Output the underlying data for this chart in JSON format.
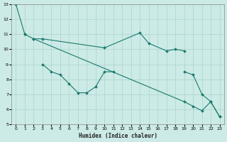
{
  "xlabel": "Humidex (Indice chaleur)",
  "background_color": "#cceae6",
  "grid_color": "#aad4cc",
  "line_color": "#1a7a6e",
  "xlim": [
    -0.5,
    23.5
  ],
  "ylim": [
    5,
    13
  ],
  "yticks": [
    5,
    6,
    7,
    8,
    9,
    10,
    11,
    12,
    13
  ],
  "xticks": [
    0,
    1,
    2,
    3,
    4,
    5,
    6,
    7,
    8,
    9,
    10,
    11,
    12,
    13,
    14,
    15,
    16,
    17,
    18,
    19,
    20,
    21,
    22,
    23
  ],
  "lines": [
    {
      "x": [
        0,
        1
      ],
      "y": [
        13,
        11
      ]
    },
    {
      "x": [
        1,
        2,
        3,
        10,
        14,
        15,
        17,
        18,
        19
      ],
      "y": [
        11,
        10.7,
        10.7,
        10.1,
        11.1,
        10.4,
        9.9,
        10.0,
        9.9
      ]
    },
    {
      "x": [
        2,
        19,
        20,
        21,
        22,
        23
      ],
      "y": [
        10.7,
        6.5,
        6.2,
        5.9,
        6.5,
        5.5
      ]
    },
    {
      "x": [
        3,
        4,
        5,
        6,
        7,
        8,
        9,
        10,
        11
      ],
      "y": [
        9.0,
        8.5,
        8.3,
        7.7,
        7.1,
        7.1,
        7.5,
        8.5,
        8.5
      ]
    },
    {
      "x": [
        19,
        20,
        21,
        22,
        23
      ],
      "y": [
        8.5,
        8.3,
        7.0,
        6.5,
        5.5
      ]
    }
  ]
}
